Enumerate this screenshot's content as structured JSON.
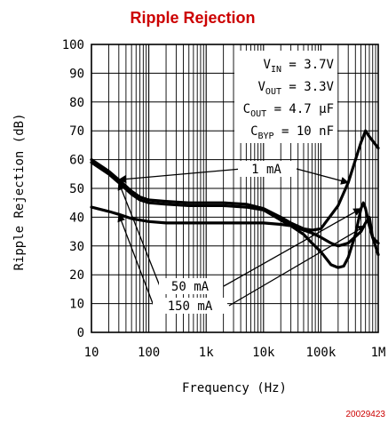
{
  "chart_data": {
    "type": "line",
    "title": "Ripple Rejection",
    "xlabel": "Frequency (Hz)",
    "ylabel": "Ripple Rejection (dB)",
    "x_scale": "log",
    "xlim": [
      10,
      1000000
    ],
    "ylim": [
      0,
      100
    ],
    "x_ticks": [
      {
        "value": 10,
        "label": "10"
      },
      {
        "value": 100,
        "label": "100"
      },
      {
        "value": 1000,
        "label": "1k"
      },
      {
        "value": 10000,
        "label": "10k"
      },
      {
        "value": 100000,
        "label": "100k"
      },
      {
        "value": 1000000,
        "label": "1M"
      }
    ],
    "y_ticks": [
      0,
      10,
      20,
      30,
      40,
      50,
      60,
      70,
      80,
      90,
      100
    ],
    "grid": true,
    "conditions": [
      "V_IN = 3.7V",
      "V_OUT = 3.3V",
      "C_OUT = 4.7 μF",
      "C_BYP = 10 nF"
    ],
    "series": [
      {
        "name": "1 mA",
        "x": [
          10,
          20,
          30,
          50,
          70,
          100,
          200,
          500,
          1000,
          2000,
          5000,
          10000,
          20000,
          30000,
          50000,
          70000,
          100000,
          200000,
          300000,
          500000,
          600000,
          700000,
          1000000
        ],
        "y": [
          60,
          56,
          53,
          49,
          47,
          46,
          45.5,
          45,
          45,
          45,
          44.5,
          43,
          40,
          38,
          36,
          35.5,
          36,
          44,
          52,
          66,
          70,
          68,
          64
        ]
      },
      {
        "name": "50 mA",
        "x": [
          10,
          20,
          30,
          50,
          70,
          100,
          200,
          500,
          1000,
          2000,
          5000,
          10000,
          20000,
          30000,
          50000,
          70000,
          100000,
          150000,
          200000,
          250000,
          300000,
          400000,
          500000,
          550000,
          600000,
          700000,
          800000,
          1000000
        ],
        "y": [
          59,
          55,
          52,
          48,
          46,
          45,
          44.5,
          44,
          44,
          44,
          43.5,
          42.5,
          39,
          37,
          34,
          31,
          28,
          23.5,
          22.5,
          23,
          26,
          34,
          43,
          45,
          43,
          37,
          33,
          31
        ]
      },
      {
        "name": "150 mA",
        "x": [
          10,
          20,
          30,
          50,
          100,
          200,
          500,
          1000,
          2000,
          5000,
          10000,
          20000,
          30000,
          50000,
          70000,
          100000,
          150000,
          200000,
          300000,
          500000,
          600000,
          700000,
          800000,
          1000000
        ],
        "y": [
          43.5,
          42,
          41,
          39.5,
          38.5,
          38,
          38,
          38,
          38,
          38,
          38,
          37.5,
          37,
          35.5,
          34.5,
          33,
          31,
          30,
          31,
          35,
          38,
          40,
          33,
          27
        ]
      }
    ],
    "annotations": [
      "1 mA",
      "50 mA",
      "150 mA"
    ],
    "figure_number": "20029423"
  }
}
